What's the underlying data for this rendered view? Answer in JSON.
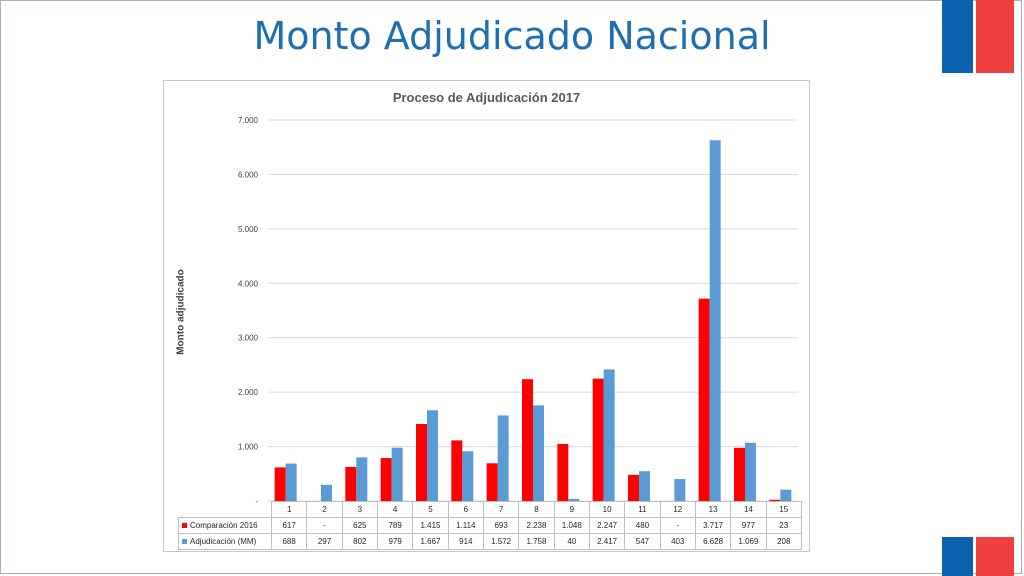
{
  "page": {
    "title": "Monto Adjudicado Nacional"
  },
  "colors": {
    "title": "#1f6fb0",
    "flag_blue": "#0b62b0",
    "flag_red": "#ef4040",
    "series_2016": "#ff0000",
    "series_mm": "#5b9bd5"
  },
  "chart_data": {
    "type": "bar",
    "title": "Proceso de Adjudicación 2017",
    "xlabel": "",
    "ylabel": "Monto adjudicado",
    "categories": [
      "1",
      "2",
      "3",
      "4",
      "5",
      "6",
      "7",
      "8",
      "9",
      "10",
      "11",
      "12",
      "13",
      "14",
      "15"
    ],
    "series": [
      {
        "name": "Comparación 2016",
        "color": "#ff0000",
        "values": [
          617,
          0,
          625,
          789,
          1415,
          1114,
          693,
          2238,
          1048,
          2247,
          480,
          0,
          3717,
          977,
          23
        ],
        "labels": [
          "617",
          "-",
          "625",
          "789",
          "1.415",
          "1.114",
          "693",
          "2.238",
          "1.048",
          "2.247",
          "480",
          "-",
          "3.717",
          "977",
          "23"
        ]
      },
      {
        "name": "Adjudicación (MM)",
        "color": "#5b9bd5",
        "values": [
          688,
          297,
          802,
          979,
          1667,
          914,
          1572,
          1758,
          40,
          2417,
          547,
          403,
          6628,
          1069,
          208
        ],
        "labels": [
          "688",
          "297",
          "802",
          "979",
          "1.667",
          "914",
          "1.572",
          "1.758",
          "40",
          "2.417",
          "547",
          "403",
          "6.628",
          "1.069",
          "208"
        ]
      }
    ],
    "ylim": [
      0,
      7000
    ],
    "yticks": [
      0,
      1000,
      2000,
      3000,
      4000,
      5000,
      6000,
      7000
    ],
    "ytick_labels": [
      "-",
      "1.000",
      "2.000",
      "3.000",
      "4.000",
      "5.000",
      "6.000",
      "7.000"
    ],
    "grid": true,
    "legend": "data-table"
  }
}
